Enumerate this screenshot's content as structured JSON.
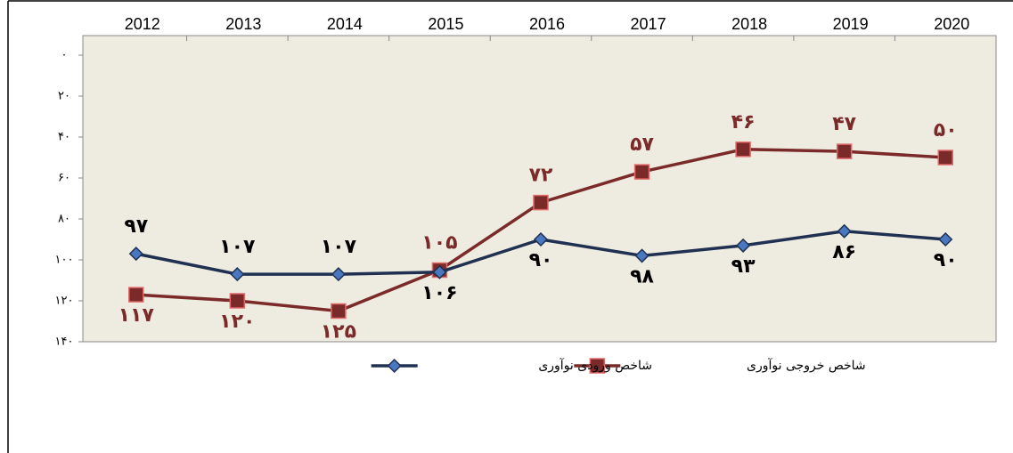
{
  "chart_data": {
    "type": "line",
    "categories": [
      "2012",
      "2013",
      "2014",
      "2015",
      "2016",
      "2017",
      "2018",
      "2019",
      "2020"
    ],
    "series": [
      {
        "name": "شاخص خروجی نوآوری",
        "color": "#7b2a2a",
        "values": [
          117,
          120,
          125,
          105,
          72,
          57,
          46,
          47,
          50
        ],
        "value_labels": [
          "۱۱۷",
          "۱۲۰",
          "۱۲۵",
          "۱۰۵",
          "۷۲",
          "۵۷",
          "۴۶",
          "۴۷",
          "۵۰"
        ]
      },
      {
        "name": "شاخص ورودی نوآوری",
        "color": "#1f3050",
        "values": [
          97,
          107,
          107,
          106,
          90,
          98,
          93,
          86,
          90
        ],
        "value_labels": [
          "۹۷",
          "۱۰۷",
          "۱۰۷",
          "۱۰۶",
          "۹۰",
          "۹۸",
          "۹۳",
          "۸۶",
          "۹۰"
        ]
      }
    ],
    "ylim": [
      0,
      140
    ],
    "y_inverted": true,
    "yticks": [
      {
        "value": 0,
        "label": "۰"
      },
      {
        "value": 20,
        "label": "۲۰"
      },
      {
        "value": 40,
        "label": "۴۰"
      },
      {
        "value": 60,
        "label": "۶۰"
      },
      {
        "value": 80,
        "label": "۸۰"
      },
      {
        "value": 100,
        "label": "۱۰۰"
      },
      {
        "value": 120,
        "label": "۱۲۰"
      },
      {
        "value": 140,
        "label": "۱۴۰"
      }
    ],
    "legend": "bottom",
    "grid": false
  }
}
